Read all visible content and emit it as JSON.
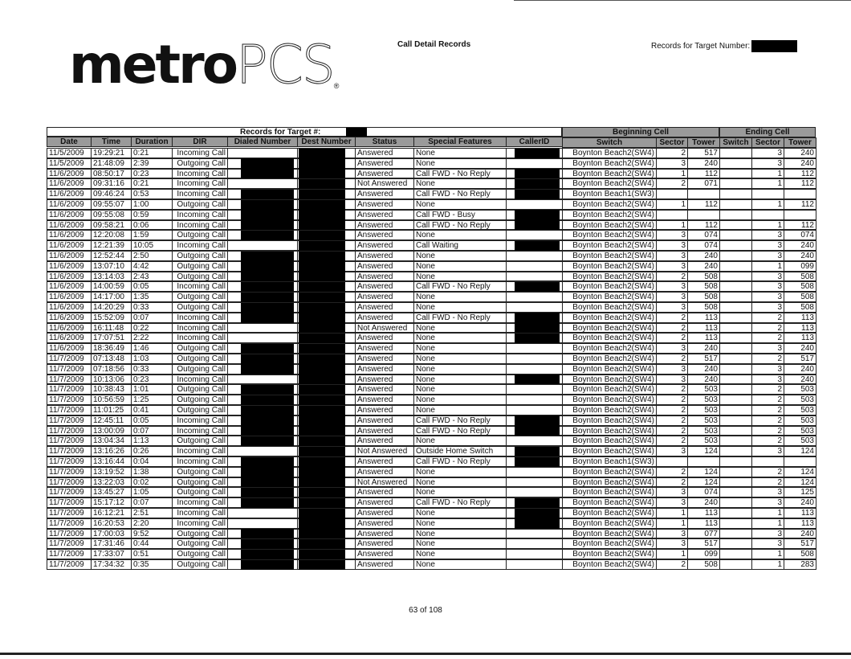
{
  "brand": {
    "logo_text": "metroPCS",
    "logo_bold": "metro",
    "logo_light": "PCS",
    "logo_mark": "®"
  },
  "header": {
    "title": "Call Detail Records",
    "target_label": "Records for Target Number:"
  },
  "table": {
    "title": "Records for Target #:",
    "group_beginning": "Beginning Cell",
    "group_ending": "Ending Cell",
    "columns": [
      "Date",
      "Time",
      "Duration",
      "DIR",
      "Dialed Number",
      "Dest Number",
      "Status",
      "Special Features",
      "CallerID",
      "Switch",
      "Sector",
      "Tower",
      "Switch",
      "Sector",
      "Tower"
    ],
    "row_fields": [
      "date",
      "time",
      "duration",
      "dir",
      "status",
      "special_features",
      "begin_switch",
      "begin_sector",
      "begin_tower",
      "end_sector",
      "end_tower",
      "dialed_redacted",
      "callerid_redacted"
    ],
    "rows": [
      [
        "11/5/2009",
        "19:29:21",
        "0:21",
        "Incoming Call",
        "Answered",
        "None",
        "Boynton Beach2(SW4)",
        "2",
        "517",
        "3",
        "240",
        0,
        1
      ],
      [
        "11/5/2009",
        "21:48:09",
        "2:39",
        "Outgoing Call",
        "Answered",
        "None",
        "Boynton Beach2(SW4)",
        "3",
        "240",
        "3",
        "240",
        1,
        0
      ],
      [
        "11/6/2009",
        "08:50:17",
        "0:23",
        "Incoming Call",
        "Answered",
        "Call FWD - No Reply",
        "Boynton Beach2(SW4)",
        "1",
        "112",
        "1",
        "112",
        1,
        1
      ],
      [
        "11/6/2009",
        "09:31:16",
        "0:21",
        "Incoming Call",
        "Not Answered",
        "None",
        "Boynton Beach2(SW4)",
        "2",
        "071",
        "1",
        "112",
        0,
        1
      ],
      [
        "11/6/2009",
        "09:46:24",
        "0:53",
        "Incoming Call",
        "Answered",
        "Call FWD - No Reply",
        "Boynton Beach1(SW3)",
        "",
        "",
        "",
        "",
        1,
        1
      ],
      [
        "11/6/2009",
        "09:55:07",
        "1:00",
        "Outgoing Call",
        "Answered",
        "None",
        "Boynton Beach2(SW4)",
        "1",
        "112",
        "1",
        "112",
        1,
        0
      ],
      [
        "11/6/2009",
        "09:55:08",
        "0:59",
        "Incoming Call",
        "Answered",
        "Call FWD - Busy",
        "Boynton Beach2(SW4)",
        "",
        "",
        "",
        "",
        1,
        1
      ],
      [
        "11/6/2009",
        "09:58:21",
        "0:06",
        "Incoming Call",
        "Answered",
        "Call FWD - No Reply",
        "Boynton Beach2(SW4)",
        "1",
        "112",
        "1",
        "112",
        1,
        1
      ],
      [
        "11/6/2009",
        "12:20:08",
        "1:59",
        "Outgoing Call",
        "Answered",
        "None",
        "Boynton Beach2(SW4)",
        "3",
        "074",
        "3",
        "074",
        1,
        0
      ],
      [
        "11/6/2009",
        "12:21:39",
        "10:05",
        "Incoming Call",
        "Answered",
        "Call Waiting",
        "Boynton Beach2(SW4)",
        "3",
        "074",
        "3",
        "240",
        0,
        1
      ],
      [
        "11/6/2009",
        "12:52:44",
        "2:50",
        "Outgoing Call",
        "Answered",
        "None",
        "Boynton Beach2(SW4)",
        "3",
        "240",
        "3",
        "240",
        1,
        0
      ],
      [
        "11/6/2009",
        "13:07:10",
        "4:42",
        "Outgoing Call",
        "Answered",
        "None",
        "Boynton Beach2(SW4)",
        "3",
        "240",
        "1",
        "099",
        1,
        0
      ],
      [
        "11/6/2009",
        "13:14:03",
        "2:43",
        "Outgoing Call",
        "Answered",
        "None",
        "Boynton Beach2(SW4)",
        "2",
        "508",
        "3",
        "508",
        1,
        0
      ],
      [
        "11/6/2009",
        "14:00:59",
        "0:05",
        "Incoming Call",
        "Answered",
        "Call FWD - No Reply",
        "Boynton Beach2(SW4)",
        "3",
        "508",
        "3",
        "508",
        1,
        1
      ],
      [
        "11/6/2009",
        "14:17:00",
        "1:35",
        "Outgoing Call",
        "Answered",
        "None",
        "Boynton Beach2(SW4)",
        "3",
        "508",
        "3",
        "508",
        1,
        0
      ],
      [
        "11/6/2009",
        "14:20:29",
        "0:33",
        "Outgoing Call",
        "Answered",
        "None",
        "Boynton Beach2(SW4)",
        "3",
        "508",
        "3",
        "508",
        1,
        0
      ],
      [
        "11/6/2009",
        "15:52:09",
        "0:07",
        "Incoming Call",
        "Answered",
        "Call FWD - No Reply",
        "Boynton Beach2(SW4)",
        "2",
        "113",
        "2",
        "113",
        1,
        1
      ],
      [
        "11/6/2009",
        "16:11:48",
        "0:22",
        "Incoming Call",
        "Not Answered",
        "None",
        "Boynton Beach2(SW4)",
        "2",
        "113",
        "2",
        "113",
        0,
        1
      ],
      [
        "11/6/2009",
        "17:07:51",
        "2:22",
        "Incoming Call",
        "Answered",
        "None",
        "Boynton Beach2(SW4)",
        "2",
        "113",
        "2",
        "113",
        0,
        1
      ],
      [
        "11/6/2009",
        "18:36:49",
        "1:46",
        "Outgoing Call",
        "Answered",
        "None",
        "Boynton Beach2(SW4)",
        "3",
        "240",
        "3",
        "240",
        1,
        0
      ],
      [
        "11/7/2009",
        "07:13:48",
        "1:03",
        "Outgoing Call",
        "Answered",
        "None",
        "Boynton Beach2(SW4)",
        "2",
        "517",
        "2",
        "517",
        1,
        0
      ],
      [
        "11/7/2009",
        "07:18:56",
        "0:33",
        "Outgoing Call",
        "Answered",
        "None",
        "Boynton Beach2(SW4)",
        "3",
        "240",
        "3",
        "240",
        1,
        0
      ],
      [
        "11/7/2009",
        "10:13:06",
        "0:23",
        "Incoming Call",
        "Answered",
        "None",
        "Boynton Beach2(SW4)",
        "3",
        "240",
        "3",
        "240",
        0,
        1
      ],
      [
        "11/7/2009",
        "10:38:43",
        "1:01",
        "Outgoing Call",
        "Answered",
        "None",
        "Boynton Beach2(SW4)",
        "2",
        "503",
        "2",
        "503",
        1,
        0
      ],
      [
        "11/7/2009",
        "10:56:59",
        "1:25",
        "Outgoing Call",
        "Answered",
        "None",
        "Boynton Beach2(SW4)",
        "2",
        "503",
        "2",
        "503",
        1,
        0
      ],
      [
        "11/7/2009",
        "11:01:25",
        "0:41",
        "Outgoing Call",
        "Answered",
        "None",
        "Boynton Beach2(SW4)",
        "2",
        "503",
        "2",
        "503",
        1,
        0
      ],
      [
        "11/7/2009",
        "12:45:11",
        "0:05",
        "Incoming Call",
        "Answered",
        "Call FWD - No Reply",
        "Boynton Beach2(SW4)",
        "2",
        "503",
        "2",
        "503",
        1,
        1
      ],
      [
        "11/7/2009",
        "13:00:09",
        "0:07",
        "Incoming Call",
        "Answered",
        "Call FWD - No Reply",
        "Boynton Beach2(SW4)",
        "2",
        "503",
        "2",
        "503",
        1,
        1
      ],
      [
        "11/7/2009",
        "13:04:34",
        "1:13",
        "Outgoing Call",
        "Answered",
        "None",
        "Boynton Beach2(SW4)",
        "2",
        "503",
        "2",
        "503",
        1,
        0
      ],
      [
        "11/7/2009",
        "13:16:26",
        "0:26",
        "Incoming Call",
        "Not Answered",
        "Outside Home Switch",
        "Boynton Beach2(SW4)",
        "3",
        "124",
        "3",
        "124",
        0,
        1
      ],
      [
        "11/7/2009",
        "13:16:44",
        "0:04",
        "Incoming Call",
        "Answered",
        "Call FWD - No Reply",
        "Boynton Beach1(SW3)",
        "",
        "",
        "",
        "",
        1,
        1
      ],
      [
        "11/7/2009",
        "13:19:52",
        "1:38",
        "Outgoing Call",
        "Answered",
        "None",
        "Boynton Beach2(SW4)",
        "2",
        "124",
        "2",
        "124",
        1,
        0
      ],
      [
        "11/7/2009",
        "13:22:03",
        "0:02",
        "Outgoing Call",
        "Not Answered",
        "None",
        "Boynton Beach2(SW4)",
        "2",
        "124",
        "2",
        "124",
        1,
        0
      ],
      [
        "11/7/2009",
        "13:45:27",
        "1:05",
        "Outgoing Call",
        "Answered",
        "None",
        "Boynton Beach2(SW4)",
        "3",
        "074",
        "3",
        "125",
        1,
        0
      ],
      [
        "11/7/2009",
        "15:17:12",
        "0:07",
        "Incoming Call",
        "Answered",
        "Call FWD - No Reply",
        "Boynton Beach2(SW4)",
        "3",
        "240",
        "3",
        "240",
        1,
        1
      ],
      [
        "11/7/2009",
        "16:12:21",
        "2:51",
        "Incoming Call",
        "Answered",
        "None",
        "Boynton Beach2(SW4)",
        "1",
        "113",
        "1",
        "113",
        0,
        1
      ],
      [
        "11/7/2009",
        "16:20:53",
        "2:20",
        "Incoming Call",
        "Answered",
        "None",
        "Boynton Beach2(SW4)",
        "1",
        "113",
        "1",
        "113",
        0,
        1
      ],
      [
        "11/7/2009",
        "17:00:03",
        "9:52",
        "Outgoing Call",
        "Answered",
        "None",
        "Boynton Beach2(SW4)",
        "3",
        "077",
        "3",
        "240",
        1,
        0
      ],
      [
        "11/7/2009",
        "17:31:46",
        "0:44",
        "Outgoing Call",
        "Answered",
        "None",
        "Boynton Beach2(SW4)",
        "3",
        "517",
        "3",
        "517",
        1,
        0
      ],
      [
        "11/7/2009",
        "17:33:07",
        "0:51",
        "Outgoing Call",
        "Answered",
        "None",
        "Boynton Beach2(SW4)",
        "1",
        "099",
        "1",
        "508",
        1,
        0
      ],
      [
        "11/7/2009",
        "17:34:32",
        "0:35",
        "Outgoing Call",
        "Answered",
        "None",
        "Boynton Beach2(SW4)",
        "2",
        "508",
        "1",
        "283",
        1,
        0
      ]
    ]
  },
  "footer": {
    "page": "63 of 108"
  }
}
